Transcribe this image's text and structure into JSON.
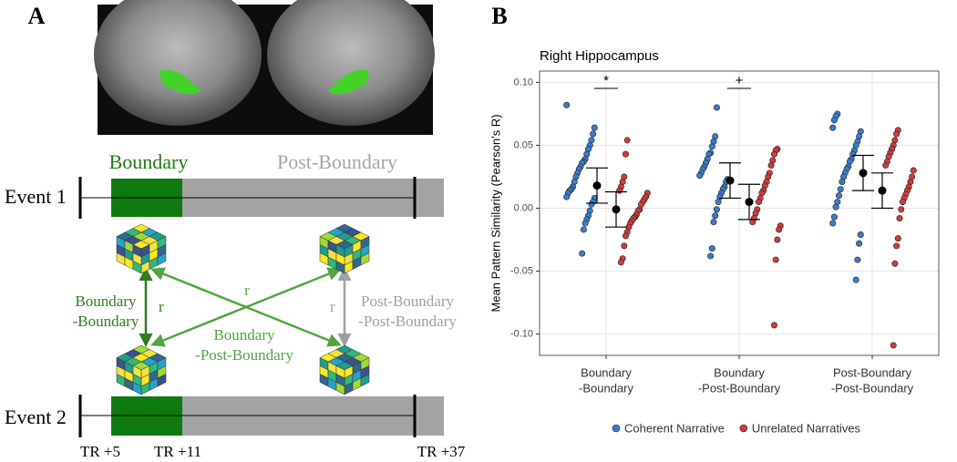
{
  "panel_a": {
    "label": "A",
    "segment_labels": [
      "Boundary",
      "Post-Boundary"
    ],
    "events": [
      "Event 1",
      "Event 2"
    ],
    "comparisons": [
      [
        "Boundary",
        "-Boundary"
      ],
      [
        "Boundary",
        "-Post-Boundary"
      ],
      [
        "Post-Boundary",
        "-Post-Boundary"
      ]
    ],
    "r_labels": [
      "r",
      "r",
      "r"
    ],
    "time_labels": [
      "TR +5",
      "TR +11",
      "TR +37"
    ]
  },
  "chart_data": {
    "type": "strip",
    "label": "B",
    "title": "Right Hippocampus",
    "y_label": "Mean Pattern Similarity (Pearson's R)",
    "categories": [
      [
        "Boundary",
        "-Boundary"
      ],
      [
        "Boundary",
        "-Post-Boundary"
      ],
      [
        "Post-Boundary",
        "-Post-Boundary"
      ]
    ],
    "ylim": [
      -0.117,
      0.109
    ],
    "yticks": [
      {
        "value": -0.1,
        "label": "-0.10"
      },
      -0.05,
      {
        "value": 0,
        "label": "0.00"
      },
      0.05,
      {
        "value": 0.1,
        "label": "0.10"
      }
    ],
    "grid": true,
    "legend": "bottom",
    "annotations": [
      "*",
      "+"
    ],
    "series": [
      {
        "name": "Coherent Narrative",
        "color": "#3a7dcc",
        "points": [
          [
            0.082,
            0.064,
            0.059,
            0.054,
            0.05,
            0.047,
            0.043,
            0.039,
            0.037,
            0.036,
            0.033,
            0.031,
            0.028,
            0.025,
            0.021,
            0.017,
            0.015,
            0.014,
            0.012,
            0.009,
            0.008,
            0.005,
            0.003,
            -0.002,
            -0.006,
            -0.009,
            -0.012,
            -0.017,
            -0.036
          ],
          [
            0.08,
            0.057,
            0.053,
            0.049,
            0.044,
            0.043,
            0.039,
            0.036,
            0.033,
            0.031,
            0.028,
            0.026,
            0.023,
            0.021,
            0.017,
            0.015,
            0.012,
            0.009,
            0.005,
            -0.001,
            -0.006,
            -0.011,
            -0.032,
            -0.038
          ],
          [
            0.075,
            0.073,
            0.07,
            0.064,
            0.061,
            0.057,
            0.053,
            0.05,
            0.046,
            0.043,
            0.039,
            0.037,
            0.033,
            0.031,
            0.028,
            0.025,
            0.021,
            0.015,
            0.01,
            0.005,
            0.001,
            -0.007,
            -0.012,
            -0.021,
            -0.028,
            -0.041,
            -0.057
          ]
        ],
        "means": [
          0.018,
          0.022,
          0.028
        ],
        "errors": [
          0.014,
          0.014,
          0.014
        ]
      },
      {
        "name": "Unrelated Narratives",
        "color": "#d23b3b",
        "points": [
          [
            0.054,
            0.043,
            0.025,
            0.021,
            0.017,
            0.014,
            0.012,
            0.009,
            0.007,
            0.005,
            0.003,
            -0.001,
            -0.002,
            -0.005,
            -0.007,
            -0.008,
            -0.01,
            -0.012,
            -0.015,
            -0.019,
            -0.022,
            -0.03,
            -0.04,
            -0.043
          ],
          [
            0.047,
            0.046,
            0.043,
            0.038,
            0.034,
            0.028,
            0.025,
            0.021,
            0.018,
            0.014,
            0.012,
            0.008,
            0.005,
            -0.001,
            -0.004,
            -0.008,
            -0.011,
            -0.014,
            -0.017,
            -0.025,
            -0.041,
            -0.093
          ],
          [
            0.062,
            0.059,
            0.054,
            0.05,
            0.047,
            0.044,
            0.041,
            0.037,
            0.034,
            0.03,
            0.025,
            0.021,
            0.017,
            0.014,
            0.011,
            0.008,
            0.005,
            -0.001,
            -0.008,
            -0.024,
            -0.03,
            -0.044,
            -0.109
          ]
        ],
        "means": [
          -0.001,
          0.005,
          0.014
        ],
        "errors": [
          0.014,
          0.014,
          0.014
        ]
      }
    ]
  }
}
